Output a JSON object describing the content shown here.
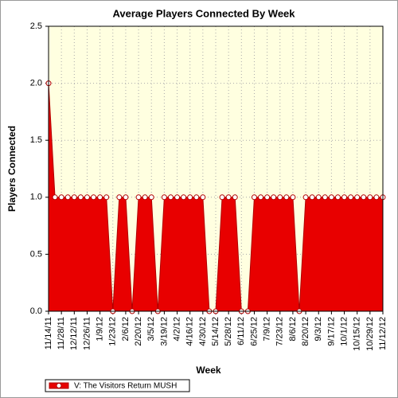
{
  "chart_data": {
    "type": "area",
    "title": "Average Players Connected By Week",
    "x_label": "Week",
    "y_label": "Players Connected",
    "categories": [
      "11/14/11",
      null,
      "11/28/11",
      null,
      "12/12/11",
      null,
      "12/26/11",
      null,
      "1/9/12",
      null,
      "1/23/12",
      null,
      "2/6/12",
      null,
      "2/20/12",
      null,
      "3/5/12",
      null,
      "3/19/12",
      null,
      "4/2/12",
      null,
      "4/16/12",
      null,
      "4/30/12",
      null,
      "5/14/12",
      null,
      "5/28/12",
      null,
      "6/11/12",
      null,
      "6/25/12",
      null,
      "7/9/12",
      null,
      "7/23/12",
      null,
      "8/6/12",
      null,
      "8/20/12",
      null,
      "9/3/12",
      null,
      "9/17/12",
      null,
      "10/1/12",
      null,
      "10/15/12",
      null,
      "10/29/12",
      null,
      "11/12/12"
    ],
    "series": [
      {
        "name": "V: The Visitors Return MUSH",
        "color": "#e80000",
        "values": [
          2,
          1,
          1,
          1,
          1,
          1,
          1,
          1,
          1,
          1,
          0,
          1,
          1,
          0,
          1,
          1,
          1,
          0,
          1,
          1,
          1,
          1,
          1,
          1,
          1,
          0,
          0,
          1,
          1,
          1,
          0,
          0,
          1,
          1,
          1,
          1,
          1,
          1,
          1,
          0,
          1,
          1,
          1,
          1,
          1,
          1,
          1,
          1,
          1,
          1,
          1,
          1,
          1
        ]
      }
    ],
    "ylim": [
      0,
      2.5
    ],
    "yticks": [
      {
        "value": 0,
        "label": "0.0"
      },
      {
        "value": 0.5,
        "label": "0.5"
      },
      {
        "value": 1,
        "label": "1.0"
      },
      {
        "value": 1.5,
        "label": "1.5"
      },
      {
        "value": 2,
        "label": "2.0"
      },
      {
        "value": 2.5,
        "label": "2.5"
      }
    ],
    "grid": true,
    "legend": "bottom-left",
    "background": "#ffffe0"
  }
}
